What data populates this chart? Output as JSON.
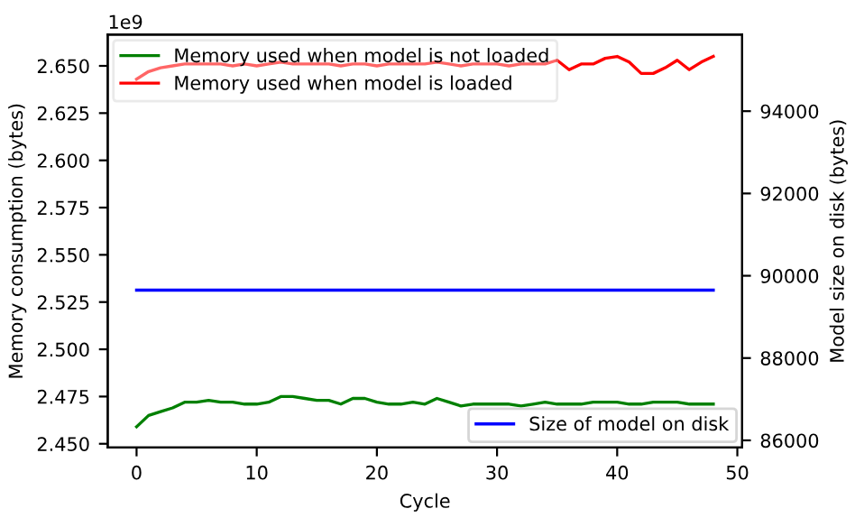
{
  "chart_data": {
    "type": "line",
    "xlabel": "Cycle",
    "ylabel": "Memory consumption (bytes)",
    "y2label": "Model size on disk (bytes)",
    "annotations": [
      "1e9"
    ],
    "x": [
      0,
      1,
      2,
      3,
      4,
      5,
      6,
      7,
      8,
      9,
      10,
      11,
      12,
      13,
      14,
      15,
      16,
      17,
      18,
      19,
      20,
      21,
      22,
      23,
      24,
      25,
      26,
      27,
      28,
      29,
      30,
      31,
      32,
      33,
      34,
      35,
      36,
      37,
      38,
      39,
      40,
      41,
      42,
      43,
      44,
      45,
      46,
      47,
      48
    ],
    "series": [
      {
        "name": "Memory used when model is not loaded",
        "color": "#008000",
        "values": [
          2.459,
          2.465,
          2.467,
          2.469,
          2.472,
          2.472,
          2.473,
          2.472,
          2.472,
          2.471,
          2.471,
          2.472,
          2.475,
          2.475,
          2.474,
          2.473,
          2.473,
          2.471,
          2.474,
          2.474,
          2.472,
          2.471,
          2.471,
          2.472,
          2.471,
          2.474,
          2.472,
          2.47,
          2.471,
          2.471,
          2.471,
          2.471,
          2.47,
          2.471,
          2.472,
          2.471,
          2.471,
          2.471,
          2.472,
          2.472,
          2.472,
          2.471,
          2.471,
          2.472,
          2.472,
          2.472,
          2.471,
          2.471,
          2.471
        ]
      },
      {
        "name": "Memory used when model is loaded",
        "color": "#ff0000",
        "values": [
          2.643,
          2.647,
          2.649,
          2.65,
          2.651,
          2.651,
          2.651,
          2.651,
          2.65,
          2.651,
          2.65,
          2.651,
          2.652,
          2.651,
          2.651,
          2.651,
          2.651,
          2.65,
          2.651,
          2.651,
          2.65,
          2.651,
          2.651,
          2.651,
          2.651,
          2.652,
          2.651,
          2.65,
          2.651,
          2.651,
          2.651,
          2.65,
          2.651,
          2.651,
          2.651,
          2.653,
          2.648,
          2.651,
          2.651,
          2.654,
          2.655,
          2.652,
          2.646,
          2.646,
          2.649,
          2.653,
          2.648,
          2.652,
          2.655
        ]
      },
      {
        "name": "Size of model on disk",
        "color": "#0000ff",
        "axis": "y2",
        "values": [
          89650,
          89650,
          89650,
          89650,
          89650,
          89650,
          89650,
          89650,
          89650,
          89650,
          89650,
          89650,
          89650,
          89650,
          89650,
          89650,
          89650,
          89650,
          89650,
          89650,
          89650,
          89650,
          89650,
          89650,
          89650,
          89650,
          89650,
          89650,
          89650,
          89650,
          89650,
          89650,
          89650,
          89650,
          89650,
          89650,
          89650,
          89650,
          89650,
          89650,
          89650,
          89650,
          89650,
          89650,
          89650,
          89650,
          89650,
          89650,
          89650
        ]
      }
    ],
    "xlim": [
      -2.4,
      50.4
    ],
    "xticks": [
      0,
      10,
      20,
      30,
      40,
      50
    ],
    "ylim": [
      2.448,
      2.6665
    ],
    "yticks": [
      {
        "value": 2.45,
        "label": "2.450"
      },
      {
        "value": 2.475,
        "label": "2.475"
      },
      {
        "value": 2.5,
        "label": "2.500"
      },
      {
        "value": 2.525,
        "label": "2.525"
      },
      {
        "value": 2.55,
        "label": "2.550"
      },
      {
        "value": 2.575,
        "label": "2.575"
      },
      {
        "value": 2.6,
        "label": "2.600"
      },
      {
        "value": 2.625,
        "label": "2.625"
      },
      {
        "value": 2.65,
        "label": "2.650"
      }
    ],
    "y2lim": [
      85825,
      95858
    ],
    "y2ticks": [
      86000,
      88000,
      90000,
      92000,
      94000
    ],
    "legend": "top left"
  }
}
